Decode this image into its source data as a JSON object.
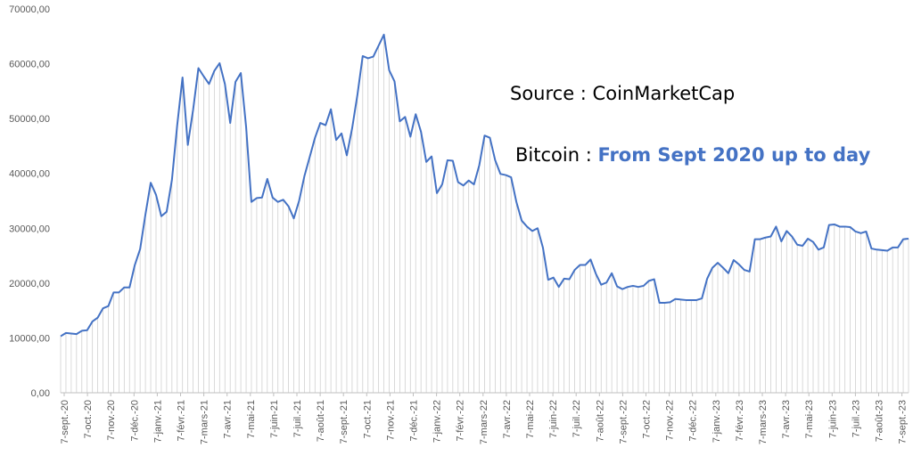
{
  "chart_data": {
    "type": "line",
    "title": "",
    "xlabel": "",
    "ylabel": "",
    "ylim": [
      0,
      70000
    ],
    "y_ticks": [
      0,
      10000,
      20000,
      30000,
      40000,
      50000,
      60000,
      70000
    ],
    "y_tick_labels": [
      "0,00",
      "10000,00",
      "20000,00",
      "30000,00",
      "40000,00",
      "50000,00",
      "60000,00",
      "70000,00"
    ],
    "x_tick_labels": [
      "7-sept.-20",
      "7-oct.-20",
      "7-nov.-20",
      "7-déc.-20",
      "7-janv.-21",
      "7-févr.-21",
      "7-mars-21",
      "7-avr.-21",
      "7-mai-21",
      "7-juin-21",
      "7-juil.-21",
      "7-août-21",
      "7-sept.-21",
      "7-oct.-21",
      "7-nov.-21",
      "7-déc.-21",
      "7-janv.-22",
      "7-févr.-22",
      "7-mars-22",
      "7-avr.-22",
      "7-mai-22",
      "7-juin-22",
      "7-juil.-22",
      "7-août-22",
      "7-sept.-22",
      "7-oct.-22",
      "7-nov.-22",
      "7-déc.-22",
      "7-janv.-23",
      "7-févr.-23",
      "7-mars-23",
      "7-avr.-23",
      "7-mai-23",
      "7-juin-23",
      "7-juil.-23",
      "7-août-23",
      "7-sept.-23"
    ],
    "grid": "vertical drop lines",
    "series": [
      {
        "color": "#4472c4",
        "values": [
          10300,
          10900,
          10800,
          10700,
          11300,
          11400,
          13000,
          13700,
          15400,
          15800,
          18300,
          18300,
          19200,
          19200,
          23300,
          26200,
          32500,
          38300,
          36100,
          32200,
          33000,
          38800,
          48800,
          57500,
          45200,
          51600,
          59200,
          57700,
          56300,
          58700,
          60100,
          56300,
          49200,
          56700,
          58300,
          48500,
          34800,
          35500,
          35600,
          39000,
          35600,
          34800,
          35200,
          34000,
          31800,
          35000,
          39500,
          43000,
          46500,
          49200,
          48800,
          51700,
          46100,
          47300,
          43300,
          48200,
          54300,
          61400,
          61000,
          61300,
          63300,
          65300,
          58800,
          56800,
          49500,
          50300,
          46700,
          50800,
          47600,
          42100,
          43100,
          36400,
          38000,
          42400,
          42300,
          38400,
          37800,
          38700,
          38000,
          41500,
          46900,
          46500,
          42400,
          39900,
          39700,
          39300,
          34800,
          31400,
          30300,
          29500,
          30000,
          26500,
          20600,
          21000,
          19300,
          20800,
          20700,
          22400,
          23300,
          23300,
          24300,
          21700,
          19700,
          20100,
          21800,
          19400,
          18900,
          19300,
          19500,
          19300,
          19500,
          20400,
          20700,
          16400,
          16400,
          16500,
          17100,
          17000,
          16900,
          16900,
          16900,
          17200,
          20800,
          22800,
          23700,
          22800,
          21800,
          24200,
          23400,
          22400,
          22100,
          28000,
          28000,
          28300,
          28500,
          30300,
          27600,
          29500,
          28500,
          27000,
          26800,
          28100,
          27500,
          26100,
          26500,
          30600,
          30700,
          30300,
          30300,
          30200,
          29400,
          29100,
          29400,
          26300,
          26100,
          26000,
          25900,
          26500,
          26500,
          28000,
          28100
        ]
      }
    ],
    "annotations": {
      "source": "Source : CoinMarketCap",
      "bitcoin_label": "Bitcoin :",
      "bitcoin_range": "From Sept 2020 up to day"
    }
  }
}
